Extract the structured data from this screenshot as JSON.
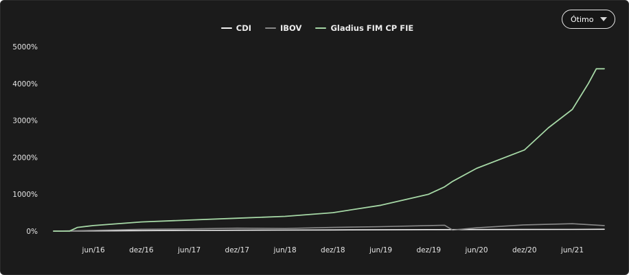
{
  "range_selector": {
    "selected": "Ótimo",
    "icon": "chevron-down-icon"
  },
  "legend": [
    {
      "label": "CDI",
      "color": "#f2f2f2"
    },
    {
      "label": "IBOV",
      "color": "#8a8a8a"
    },
    {
      "label": "Gladius FIM CP FIE",
      "color": "#a6d8a6"
    }
  ],
  "chart_data": {
    "type": "line",
    "y_unit": "%",
    "ylim": [
      0,
      5000
    ],
    "y_ticks": [
      0,
      1000,
      2000,
      3000,
      4000,
      5000
    ],
    "y_tick_labels": [
      "0%",
      "1000%",
      "2000%",
      "3000%",
      "4000%",
      "5000%"
    ],
    "x_range": [
      "2016-01",
      "2021-10"
    ],
    "x_ticks": [
      "2016-06",
      "2016-12",
      "2017-06",
      "2017-12",
      "2018-06",
      "2018-12",
      "2019-06",
      "2019-12",
      "2020-06",
      "2020-12",
      "2021-06"
    ],
    "x_tick_labels": [
      "jun/16",
      "dez/16",
      "jun/17",
      "dez/17",
      "jun/18",
      "dez/18",
      "jun/19",
      "dez/19",
      "jun/20",
      "dez/20",
      "jun/21"
    ],
    "grid": false,
    "legend_position": "top-center",
    "series": [
      {
        "name": "CDI",
        "color": "#f2f2f2",
        "x": [
          "2016-01",
          "2016-06",
          "2016-12",
          "2017-06",
          "2017-12",
          "2018-06",
          "2018-12",
          "2019-06",
          "2019-12",
          "2020-06",
          "2020-12",
          "2021-06",
          "2021-10"
        ],
        "values": [
          0,
          6,
          13,
          19,
          24,
          28,
          32,
          36,
          40,
          43,
          45,
          47,
          50
        ]
      },
      {
        "name": "IBOV",
        "color": "#8a8a8a",
        "x": [
          "2016-01",
          "2016-06",
          "2016-12",
          "2017-06",
          "2017-12",
          "2018-06",
          "2018-12",
          "2019-06",
          "2019-12",
          "2020-02",
          "2020-03",
          "2020-06",
          "2020-12",
          "2021-06",
          "2021-10"
        ],
        "values": [
          0,
          20,
          50,
          60,
          80,
          70,
          100,
          120,
          150,
          160,
          30,
          90,
          170,
          200,
          150
        ]
      },
      {
        "name": "Gladius FIM CP FIE",
        "color": "#a6d8a6",
        "x": [
          "2016-01",
          "2016-03",
          "2016-04",
          "2016-06",
          "2016-12",
          "2017-06",
          "2017-12",
          "2018-06",
          "2018-12",
          "2019-06",
          "2019-12",
          "2020-02",
          "2020-03",
          "2020-06",
          "2020-12",
          "2021-03",
          "2021-06",
          "2021-08",
          "2021-09",
          "2021-10"
        ],
        "values": [
          0,
          0,
          100,
          150,
          250,
          300,
          350,
          400,
          500,
          700,
          1000,
          1200,
          1350,
          1700,
          2200,
          2800,
          3300,
          4000,
          4400,
          4400
        ]
      }
    ]
  }
}
